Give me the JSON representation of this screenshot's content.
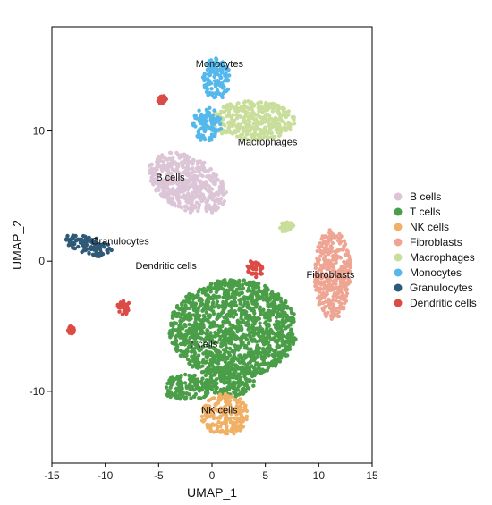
{
  "chart_data": {
    "type": "scatter",
    "title": "",
    "xlabel": "UMAP_1",
    "ylabel": "UMAP_2",
    "xlim": [
      -15,
      15
    ],
    "ylim": [
      -15.5,
      18
    ],
    "x_ticks": [
      -15,
      -10,
      -5,
      0,
      5,
      10,
      15
    ],
    "y_ticks": [
      -10,
      0,
      10
    ],
    "x_tick_labels": [
      "-15",
      "-10",
      "-5",
      "0",
      "5",
      "10",
      "15"
    ],
    "y_tick_labels": [
      "-10",
      "0",
      "10"
    ],
    "grid": false,
    "legend_position": "right",
    "series": [
      {
        "name": "B cells",
        "color": "#DCC5D6",
        "regions": [
          {
            "cx": -2.3,
            "cy": 6.0,
            "rx": 3.8,
            "ry": 2.1,
            "rot": -20
          }
        ]
      },
      {
        "name": "T cells",
        "color": "#4A9E48",
        "regions": [
          {
            "cx": 2.0,
            "cy": -5.2,
            "rx": 6.0,
            "ry": 3.8,
            "rot": 0
          },
          {
            "cx": -2.3,
            "cy": -9.7,
            "rx": 2.4,
            "ry": 1.0,
            "rot": 0
          },
          {
            "cx": 1.5,
            "cy": -9.2,
            "rx": 2.5,
            "ry": 1.3,
            "rot": 0
          }
        ]
      },
      {
        "name": "NK cells",
        "color": "#F0B065",
        "regions": [
          {
            "cx": 1.2,
            "cy": -11.8,
            "rx": 2.2,
            "ry": 1.6,
            "rot": 0
          }
        ]
      },
      {
        "name": "Fibroblasts",
        "color": "#EFA594",
        "regions": [
          {
            "cx": 11.3,
            "cy": -1.0,
            "rx": 1.7,
            "ry": 3.5,
            "rot": 0
          }
        ]
      },
      {
        "name": "Macrophages",
        "color": "#C9DE9A",
        "regions": [
          {
            "cx": 3.8,
            "cy": 10.8,
            "rx": 4.0,
            "ry": 1.5,
            "rot": 0
          },
          {
            "cx": 7.0,
            "cy": 2.6,
            "rx": 0.7,
            "ry": 0.4,
            "rot": 0
          }
        ]
      },
      {
        "name": "Monocytes",
        "color": "#55B8EC",
        "regions": [
          {
            "cx": 0.4,
            "cy": 14.0,
            "rx": 1.3,
            "ry": 1.6,
            "rot": 0
          },
          {
            "cx": -0.5,
            "cy": 10.5,
            "rx": 1.4,
            "ry": 1.3,
            "rot": 0
          }
        ]
      },
      {
        "name": "Granulocytes",
        "color": "#2E5A78",
        "regions": [
          {
            "cx": -11.5,
            "cy": 1.2,
            "rx": 2.4,
            "ry": 0.7,
            "rot": -12
          }
        ]
      },
      {
        "name": "Dendritic cells",
        "color": "#DC4B45",
        "regions": [
          {
            "cx": 4.0,
            "cy": -0.6,
            "rx": 0.8,
            "ry": 0.7,
            "rot": 0
          },
          {
            "cx": -8.3,
            "cy": -3.5,
            "rx": 0.6,
            "ry": 0.6,
            "rot": 0
          },
          {
            "cx": -4.7,
            "cy": 12.4,
            "rx": 0.5,
            "ry": 0.3,
            "rot": 0
          },
          {
            "cx": -13.2,
            "cy": -5.3,
            "rx": 0.3,
            "ry": 0.3,
            "rot": 0
          }
        ]
      }
    ],
    "annotations": [
      {
        "text": "Monocytes",
        "x": 0.7,
        "y": 14.9
      },
      {
        "text": "Macrophages",
        "x": 5.2,
        "y": 8.9
      },
      {
        "text": "B cells",
        "x": -3.9,
        "y": 6.2
      },
      {
        "text": "Granulocytes",
        "x": -8.6,
        "y": 1.3
      },
      {
        "text": "Dendritic cells",
        "x": -4.3,
        "y": -0.6
      },
      {
        "text": "Fibroblasts",
        "x": 11.1,
        "y": -1.3
      },
      {
        "text": "T cells",
        "x": -0.8,
        "y": -6.6
      },
      {
        "text": "NK cells",
        "x": 0.7,
        "y": -11.7
      }
    ]
  }
}
